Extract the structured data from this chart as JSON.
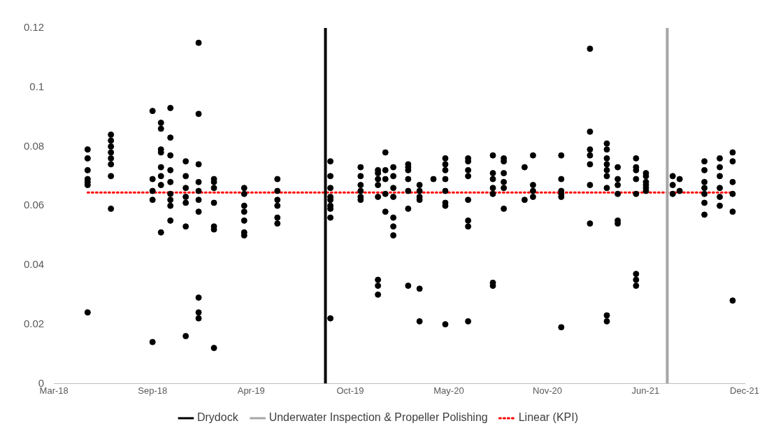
{
  "chart_data": {
    "type": "scatter",
    "legend": "bottom",
    "xlim": [
      "2018-03-01",
      "2021-12-24"
    ],
    "xticks": [
      {
        "value": "2018-03-01",
        "label": "Mar-18"
      },
      {
        "value": "2018-09-16",
        "label": "Sep-18"
      },
      {
        "value": "2019-04-03",
        "label": "Apr-19"
      },
      {
        "value": "2019-10-20",
        "label": "Oct-19"
      },
      {
        "value": "2020-05-06",
        "label": "May-20"
      },
      {
        "value": "2020-11-21",
        "label": "Nov-20"
      },
      {
        "value": "2021-06-07",
        "label": "Jun-21"
      },
      {
        "value": "2021-12-24",
        "label": "Dec-21"
      }
    ],
    "ylim": [
      0,
      0.12
    ],
    "yticks": [
      0,
      0.02,
      0.04,
      0.06,
      0.08,
      0.1,
      0.12
    ],
    "series": [
      {
        "type": "scatter",
        "marker": "circle",
        "color": "#000000",
        "x": [
          "2018-05-08",
          "2018-05-08",
          "2018-05-08",
          "2018-05-08",
          "2018-05-08",
          "2018-05-08",
          "2018-05-08",
          "2018-06-24",
          "2018-06-24",
          "2018-06-24",
          "2018-06-24",
          "2018-06-24",
          "2018-06-24",
          "2018-06-24",
          "2018-06-24",
          "2018-09-16",
          "2018-09-16",
          "2018-09-16",
          "2018-09-16",
          "2018-09-16",
          "2018-10-03",
          "2018-10-03",
          "2018-10-03",
          "2018-10-03",
          "2018-10-03",
          "2018-10-03",
          "2018-10-03",
          "2018-10-03",
          "2018-10-22",
          "2018-10-22",
          "2018-10-22",
          "2018-10-22",
          "2018-10-22",
          "2018-10-22",
          "2018-10-22",
          "2018-10-22",
          "2018-10-22",
          "2018-11-22",
          "2018-11-22",
          "2018-11-22",
          "2018-11-22",
          "2018-11-22",
          "2018-11-22",
          "2018-11-22",
          "2018-12-18",
          "2018-12-18",
          "2018-12-18",
          "2018-12-18",
          "2018-12-18",
          "2018-12-18",
          "2018-12-18",
          "2018-12-18",
          "2018-12-18",
          "2018-12-18",
          "2019-01-18",
          "2019-01-18",
          "2019-01-18",
          "2019-01-18",
          "2019-01-18",
          "2019-01-18",
          "2019-01-18",
          "2019-03-20",
          "2019-03-20",
          "2019-03-20",
          "2019-03-20",
          "2019-03-20",
          "2019-03-20",
          "2019-03-20",
          "2019-05-26",
          "2019-05-26",
          "2019-05-26",
          "2019-05-26",
          "2019-05-26",
          "2019-05-26",
          "2019-09-10",
          "2019-09-10",
          "2019-09-10",
          "2019-09-10",
          "2019-09-10",
          "2019-09-10",
          "2019-09-10",
          "2019-09-10",
          "2019-09-10",
          "2019-11-10",
          "2019-11-10",
          "2019-11-10",
          "2019-11-10",
          "2019-11-10",
          "2019-11-10",
          "2019-12-15",
          "2019-12-15",
          "2019-12-15",
          "2019-12-15",
          "2019-12-15",
          "2019-12-15",
          "2019-12-15",
          "2019-12-15",
          "2019-12-30",
          "2019-12-30",
          "2019-12-30",
          "2019-12-30",
          "2019-12-30",
          "2020-01-15",
          "2020-01-15",
          "2020-01-15",
          "2020-01-15",
          "2020-01-15",
          "2020-01-15",
          "2020-01-15",
          "2020-02-14",
          "2020-02-14",
          "2020-02-14",
          "2020-02-14",
          "2020-02-14",
          "2020-02-14",
          "2020-02-14",
          "2020-03-08",
          "2020-03-08",
          "2020-03-08",
          "2020-03-08",
          "2020-03-08",
          "2020-03-08",
          "2020-04-05",
          "2020-04-29",
          "2020-04-29",
          "2020-04-29",
          "2020-04-29",
          "2020-04-29",
          "2020-04-29",
          "2020-04-29",
          "2020-04-29",
          "2020-06-14",
          "2020-06-14",
          "2020-06-14",
          "2020-06-14",
          "2020-06-14",
          "2020-06-14",
          "2020-06-14",
          "2020-06-14",
          "2020-08-03",
          "2020-08-03",
          "2020-08-03",
          "2020-08-03",
          "2020-08-03",
          "2020-08-03",
          "2020-08-03",
          "2020-08-25",
          "2020-08-25",
          "2020-08-25",
          "2020-08-25",
          "2020-08-25",
          "2020-08-25",
          "2020-10-06",
          "2020-10-06",
          "2020-10-23",
          "2020-10-23",
          "2020-10-23",
          "2020-10-23",
          "2020-12-19",
          "2020-12-19",
          "2020-12-19",
          "2020-12-19",
          "2020-12-19",
          "2020-12-19",
          "2021-02-15",
          "2021-02-15",
          "2021-02-15",
          "2021-02-15",
          "2021-02-15",
          "2021-02-15",
          "2021-02-15",
          "2021-03-21",
          "2021-03-21",
          "2021-03-21",
          "2021-03-21",
          "2021-03-21",
          "2021-03-21",
          "2021-03-21",
          "2021-03-21",
          "2021-03-21",
          "2021-04-12",
          "2021-04-12",
          "2021-04-12",
          "2021-04-12",
          "2021-04-12",
          "2021-04-12",
          "2021-05-19",
          "2021-05-19",
          "2021-05-19",
          "2021-05-19",
          "2021-05-19",
          "2021-05-19",
          "2021-05-19",
          "2021-05-19",
          "2021-06-08",
          "2021-06-08",
          "2021-06-08",
          "2021-06-08",
          "2021-06-08",
          "2021-06-08",
          "2021-08-01",
          "2021-08-01",
          "2021-08-01",
          "2021-08-15",
          "2021-08-15",
          "2021-10-04",
          "2021-10-04",
          "2021-10-04",
          "2021-10-04",
          "2021-10-04",
          "2021-10-04",
          "2021-10-04",
          "2021-11-04",
          "2021-11-04",
          "2021-11-04",
          "2021-11-04",
          "2021-11-04",
          "2021-11-04",
          "2021-11-30",
          "2021-11-30",
          "2021-11-30",
          "2021-11-30",
          "2021-11-30",
          "2021-11-30"
        ],
        "values": [
          0.079,
          0.076,
          0.072,
          0.069,
          0.068,
          0.067,
          0.024,
          0.084,
          0.082,
          0.08,
          0.078,
          0.076,
          0.074,
          0.07,
          0.059,
          0.092,
          0.069,
          0.065,
          0.062,
          0.014,
          0.088,
          0.086,
          0.079,
          0.078,
          0.073,
          0.07,
          0.067,
          0.051,
          0.093,
          0.083,
          0.077,
          0.072,
          0.068,
          0.064,
          0.062,
          0.06,
          0.055,
          0.075,
          0.07,
          0.066,
          0.063,
          0.061,
          0.053,
          0.016,
          0.115,
          0.091,
          0.074,
          0.068,
          0.065,
          0.062,
          0.058,
          0.029,
          0.024,
          0.022,
          0.069,
          0.068,
          0.066,
          0.061,
          0.053,
          0.052,
          0.012,
          0.066,
          0.064,
          0.06,
          0.058,
          0.055,
          0.051,
          0.05,
          0.069,
          0.065,
          0.062,
          0.06,
          0.056,
          0.054,
          0.075,
          0.07,
          0.066,
          0.063,
          0.062,
          0.06,
          0.059,
          0.056,
          0.022,
          0.073,
          0.07,
          0.067,
          0.065,
          0.063,
          0.062,
          0.072,
          0.071,
          0.069,
          0.067,
          0.063,
          0.035,
          0.033,
          0.03,
          0.078,
          0.072,
          0.069,
          0.064,
          0.058,
          0.073,
          0.07,
          0.066,
          0.063,
          0.056,
          0.053,
          0.05,
          0.074,
          0.073,
          0.072,
          0.069,
          0.065,
          0.059,
          0.033,
          0.067,
          0.065,
          0.063,
          0.062,
          0.032,
          0.021,
          0.069,
          0.076,
          0.074,
          0.072,
          0.069,
          0.065,
          0.061,
          0.06,
          0.02,
          0.076,
          0.075,
          0.072,
          0.07,
          0.062,
          0.055,
          0.053,
          0.021,
          0.077,
          0.071,
          0.069,
          0.066,
          0.064,
          0.034,
          0.033,
          0.076,
          0.075,
          0.071,
          0.068,
          0.066,
          0.059,
          0.073,
          0.062,
          0.077,
          0.067,
          0.065,
          0.063,
          0.077,
          0.069,
          0.065,
          0.064,
          0.063,
          0.019,
          0.113,
          0.085,
          0.079,
          0.077,
          0.074,
          0.067,
          0.054,
          0.081,
          0.079,
          0.076,
          0.074,
          0.072,
          0.07,
          0.066,
          0.023,
          0.021,
          0.073,
          0.069,
          0.067,
          0.064,
          0.055,
          0.054,
          0.076,
          0.073,
          0.072,
          0.069,
          0.064,
          0.037,
          0.035,
          0.033,
          0.071,
          0.07,
          0.068,
          0.067,
          0.066,
          0.065,
          0.07,
          0.067,
          0.064,
          0.069,
          0.065,
          0.075,
          0.072,
          0.068,
          0.066,
          0.064,
          0.061,
          0.057,
          0.076,
          0.073,
          0.07,
          0.066,
          0.063,
          0.06,
          0.078,
          0.075,
          0.068,
          0.064,
          0.058,
          0.028
        ]
      },
      {
        "type": "line",
        "name": "Drydock",
        "color": "#000000",
        "line_style": "solid",
        "marker": "none",
        "x": [
          "2019-08-31",
          "2019-08-31"
        ],
        "values": [
          0,
          0.12
        ]
      },
      {
        "type": "line",
        "name": "Underwater Inspection & Propeller Polishing",
        "color": "#a6a6a6",
        "line_style": "solid",
        "marker": "none",
        "x": [
          "2021-07-21",
          "2021-07-21"
        ],
        "values": [
          0,
          0.12
        ]
      },
      {
        "type": "line",
        "name": "Linear (KPI)",
        "color": "#ff0000",
        "line_style": "dotted",
        "marker": "none",
        "x": [
          "2018-05-08",
          "2021-11-30"
        ],
        "values": [
          0.0645,
          0.0645
        ]
      }
    ]
  }
}
